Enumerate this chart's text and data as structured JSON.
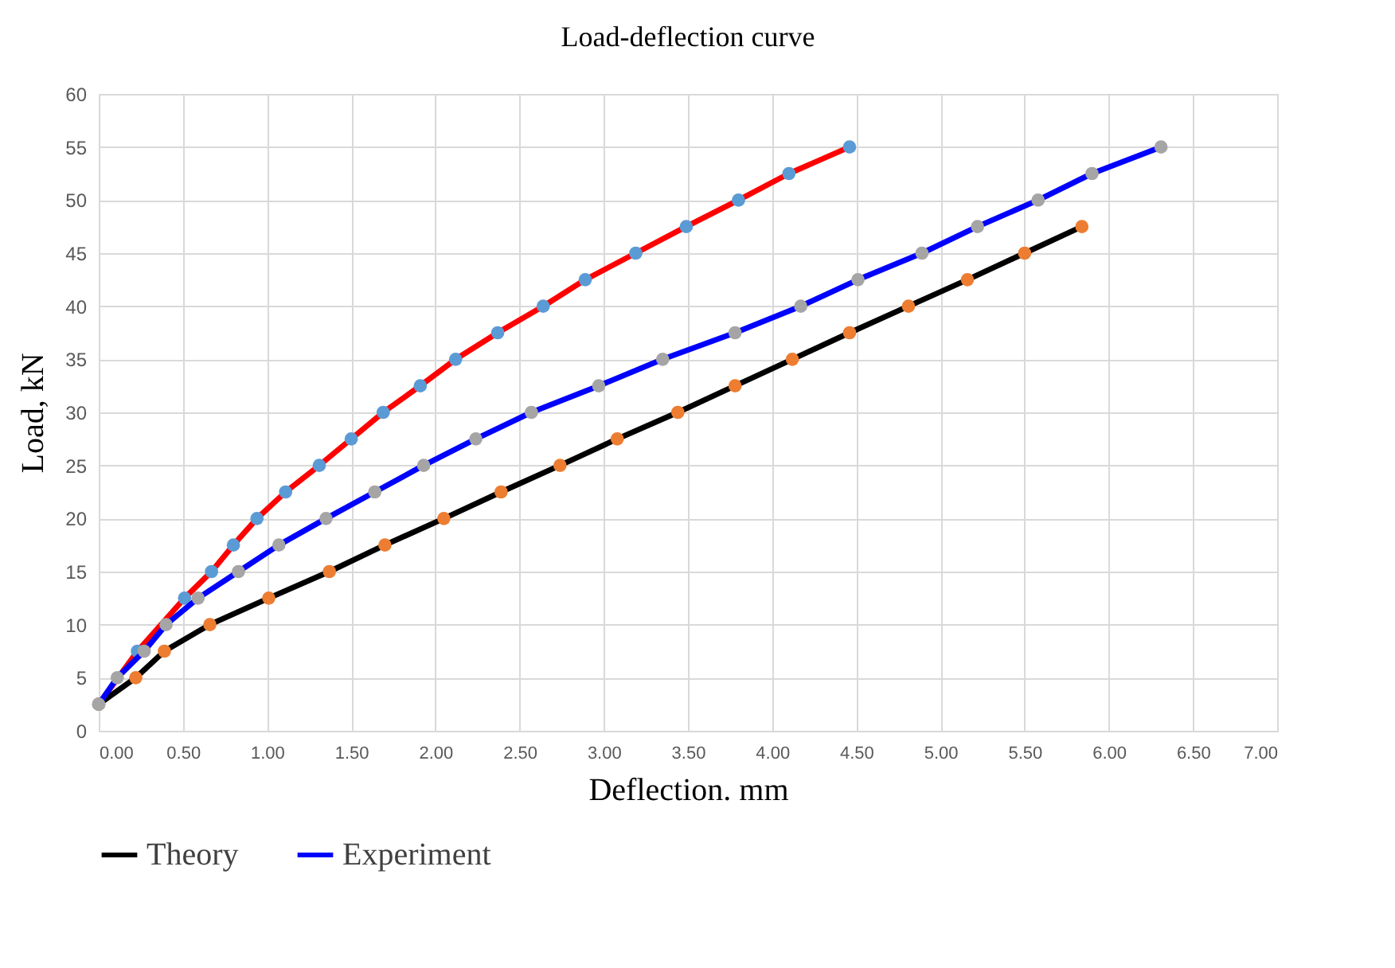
{
  "chart_data": {
    "type": "line",
    "title": "Load-deflection curve",
    "xlabel": "Deflection. mm",
    "ylabel": "Load, kN",
    "xlim": [
      0,
      7
    ],
    "ylim": [
      0,
      60
    ],
    "xticks": [
      {
        "value": 0,
        "label": "0.00"
      },
      {
        "value": 0.5,
        "label": "0.50"
      },
      {
        "value": 1,
        "label": "1.00"
      },
      {
        "value": 1.5,
        "label": "1.50"
      },
      {
        "value": 2,
        "label": "2.00"
      },
      {
        "value": 2.5,
        "label": "2.50"
      },
      {
        "value": 3,
        "label": "3.00"
      },
      {
        "value": 3.5,
        "label": "3.50"
      },
      {
        "value": 4,
        "label": "4.00"
      },
      {
        "value": 4.5,
        "label": "4.50"
      },
      {
        "value": 5,
        "label": "5.00"
      },
      {
        "value": 5.5,
        "label": "5.50"
      },
      {
        "value": 6,
        "label": "6.00"
      },
      {
        "value": 6.5,
        "label": "6.50"
      },
      {
        "value": 7,
        "label": "7.00"
      }
    ],
    "yticks": [
      0,
      5,
      10,
      15,
      20,
      25,
      30,
      35,
      40,
      45,
      50,
      55,
      60
    ],
    "grid": true,
    "legend": "bottom",
    "marker": "circle",
    "line_style": "solid",
    "series": [
      {
        "color": "#ff0000",
        "colors": [
          "#5b9bd5",
          "#5b9bd5",
          "#5b9bd5",
          "#5b9bd5",
          "#5b9bd5",
          "#5b9bd5",
          "#5b9bd5",
          "#5b9bd5",
          "#5b9bd5",
          "#5b9bd5",
          "#5b9bd5",
          "#5b9bd5",
          "#5b9bd5",
          "#5b9bd5",
          "#5b9bd5",
          "#5b9bd5",
          "#5b9bd5",
          "#5b9bd5",
          "#5b9bd5",
          "#5b9bd5"
        ],
        "x": [
          0,
          0.23,
          0.51,
          0.67,
          0.8,
          0.94,
          1.11,
          1.31,
          1.5,
          1.69,
          1.91,
          2.12,
          2.37,
          2.64,
          2.89,
          3.19,
          3.49,
          3.8,
          4.1,
          4.46
        ],
        "values": [
          2.5,
          7.5,
          12.5,
          15,
          17.5,
          20,
          22.5,
          25,
          27.5,
          30,
          32.5,
          35,
          37.5,
          40,
          42.5,
          45,
          47.5,
          50,
          52.5,
          55
        ]
      },
      {
        "name": "Theory",
        "color": "#000000",
        "colors": [
          "#ed7d31",
          "#ed7d31",
          "#ed7d31",
          "#ed7d31",
          "#ed7d31",
          "#ed7d31",
          "#ed7d31",
          "#ed7d31",
          "#ed7d31",
          "#ed7d31",
          "#ed7d31",
          "#ed7d31",
          "#ed7d31",
          "#ed7d31",
          "#ed7d31",
          "#ed7d31",
          "#ed7d31",
          "#ed7d31",
          "#ed7d31"
        ],
        "x": [
          0,
          0.22,
          0.39,
          0.66,
          1.01,
          1.37,
          1.7,
          2.05,
          2.39,
          2.74,
          3.08,
          3.44,
          3.78,
          4.12,
          4.46,
          4.81,
          5.16,
          5.5,
          5.84
        ],
        "values": [
          2.5,
          5,
          7.5,
          10,
          12.5,
          15,
          17.5,
          20,
          22.5,
          25,
          27.5,
          30,
          32.5,
          35,
          37.5,
          40,
          42.5,
          45,
          47.5
        ]
      },
      {
        "name": "Experiment",
        "color": "#0000ff",
        "colors": [
          "#a5a5a5",
          "#a5a5a5",
          "#a5a5a5",
          "#a5a5a5",
          "#a5a5a5",
          "#a5a5a5",
          "#a5a5a5",
          "#a5a5a5",
          "#a5a5a5",
          "#a5a5a5",
          "#a5a5a5",
          "#a5a5a5",
          "#a5a5a5",
          "#a5a5a5",
          "#a5a5a5",
          "#a5a5a5",
          "#a5a5a5",
          "#a5a5a5",
          "#a5a5a5",
          "#a5a5a5",
          "#a5a5a5",
          "#a5a5a5"
        ],
        "x": [
          0,
          0.11,
          0.27,
          0.4,
          0.59,
          0.83,
          1.07,
          1.35,
          1.64,
          1.93,
          2.24,
          2.57,
          2.97,
          3.35,
          3.78,
          4.17,
          4.51,
          4.89,
          5.22,
          5.58,
          5.9,
          6.31
        ],
        "values": [
          2.5,
          5,
          7.5,
          10,
          12.5,
          15,
          17.5,
          20,
          22.5,
          25,
          27.5,
          30,
          32.5,
          35,
          37.5,
          40,
          42.5,
          45,
          47.5,
          50,
          52.5,
          55
        ]
      }
    ]
  }
}
